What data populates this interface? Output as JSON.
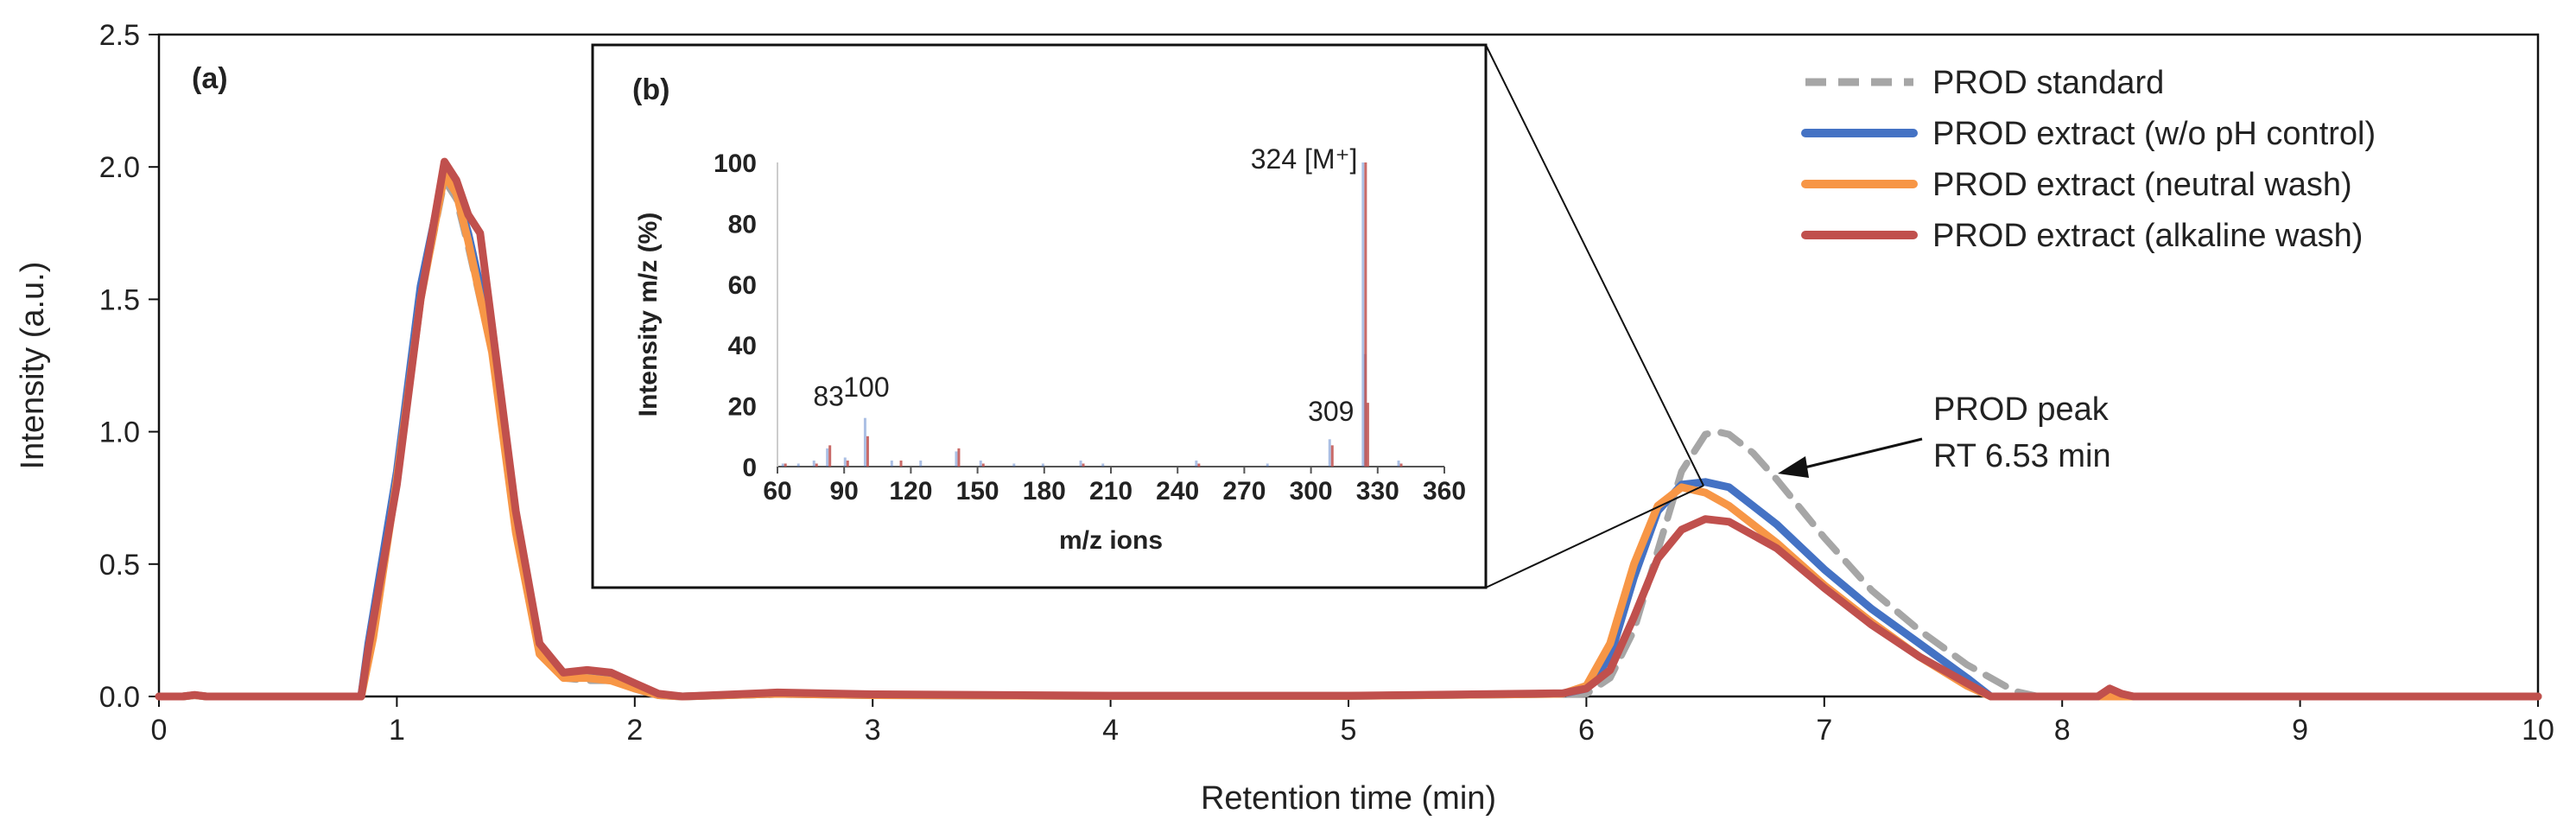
{
  "chart_data": [
    {
      "id": "main",
      "type": "line",
      "panel_label": "(a)",
      "xlabel": "Retention time (min)",
      "ylabel": "Intensity (a.u.)",
      "xlim": [
        0,
        10
      ],
      "ylim": [
        0,
        2.5
      ],
      "xticks": [
        0,
        1,
        2,
        3,
        4,
        5,
        6,
        7,
        8,
        9,
        10
      ],
      "yticks": [
        "0.0",
        "0.5",
        "1.0",
        "1.5",
        "2.0",
        "2.5"
      ],
      "legend_position": "top-right",
      "annotation": {
        "line1": "PROD peak",
        "line2": "RT 6.53 min",
        "x": 6.6,
        "y": 0.99
      },
      "series": [
        {
          "name": "PROD standard",
          "color": "#a6a6a6",
          "dashed": true,
          "points": [
            [
              0,
              0
            ],
            [
              0.1,
              0
            ],
            [
              0.15,
              0.005
            ],
            [
              0.2,
              0
            ],
            [
              0.85,
              0
            ],
            [
              0.9,
              0.25
            ],
            [
              1.0,
              0.85
            ],
            [
              1.1,
              1.5
            ],
            [
              1.2,
              1.95
            ],
            [
              1.25,
              1.88
            ],
            [
              1.3,
              1.7
            ],
            [
              1.4,
              1.3
            ],
            [
              1.5,
              0.65
            ],
            [
              1.6,
              0.18
            ],
            [
              1.7,
              0.07
            ],
            [
              1.8,
              0.06
            ],
            [
              1.9,
              0.06
            ],
            [
              2.0,
              0.03
            ],
            [
              2.1,
              0.005
            ],
            [
              2.2,
              0
            ],
            [
              2.6,
              0.008
            ],
            [
              3.0,
              0.005
            ],
            [
              4.0,
              0.002
            ],
            [
              5.0,
              0.002
            ],
            [
              6.0,
              0.01
            ],
            [
              6.1,
              0.07
            ],
            [
              6.2,
              0.25
            ],
            [
              6.3,
              0.55
            ],
            [
              6.4,
              0.85
            ],
            [
              6.5,
              0.99
            ],
            [
              6.55,
              1.0
            ],
            [
              6.6,
              0.99
            ],
            [
              6.7,
              0.92
            ],
            [
              6.8,
              0.82
            ],
            [
              7.0,
              0.6
            ],
            [
              7.2,
              0.4
            ],
            [
              7.4,
              0.25
            ],
            [
              7.6,
              0.12
            ],
            [
              7.8,
              0.02
            ],
            [
              7.9,
              0
            ],
            [
              8.2,
              0
            ],
            [
              10,
              0
            ]
          ]
        },
        {
          "name": "PROD extract (w/o pH control)",
          "color": "#4472c4",
          "dashed": false,
          "points": [
            [
              0,
              0
            ],
            [
              0.1,
              0
            ],
            [
              0.15,
              0.005
            ],
            [
              0.2,
              0
            ],
            [
              0.85,
              0
            ],
            [
              0.88,
              0.2
            ],
            [
              1.0,
              0.85
            ],
            [
              1.1,
              1.55
            ],
            [
              1.2,
              1.98
            ],
            [
              1.25,
              1.9
            ],
            [
              1.3,
              1.75
            ],
            [
              1.4,
              1.35
            ],
            [
              1.5,
              0.68
            ],
            [
              1.6,
              0.18
            ],
            [
              1.7,
              0.08
            ],
            [
              1.8,
              0.08
            ],
            [
              1.9,
              0.07
            ],
            [
              2.0,
              0.03
            ],
            [
              2.1,
              0.005
            ],
            [
              2.2,
              0
            ],
            [
              2.6,
              0.01
            ],
            [
              3.0,
              0.005
            ],
            [
              4.0,
              0.002
            ],
            [
              5.0,
              0.002
            ],
            [
              5.9,
              0.01
            ],
            [
              6.0,
              0.03
            ],
            [
              6.1,
              0.15
            ],
            [
              6.2,
              0.45
            ],
            [
              6.3,
              0.7
            ],
            [
              6.4,
              0.8
            ],
            [
              6.5,
              0.81
            ],
            [
              6.6,
              0.79
            ],
            [
              6.8,
              0.65
            ],
            [
              7.0,
              0.48
            ],
            [
              7.2,
              0.33
            ],
            [
              7.4,
              0.2
            ],
            [
              7.6,
              0.07
            ],
            [
              7.7,
              0
            ],
            [
              10,
              0
            ]
          ]
        },
        {
          "name": "PROD extract (neutral wash)",
          "color": "#f79646",
          "dashed": false,
          "points": [
            [
              0,
              0
            ],
            [
              0.1,
              0
            ],
            [
              0.15,
              0.005
            ],
            [
              0.2,
              0
            ],
            [
              0.85,
              0
            ],
            [
              0.9,
              0.22
            ],
            [
              1.0,
              0.82
            ],
            [
              1.1,
              1.5
            ],
            [
              1.2,
              1.97
            ],
            [
              1.25,
              1.9
            ],
            [
              1.3,
              1.72
            ],
            [
              1.4,
              1.3
            ],
            [
              1.5,
              0.62
            ],
            [
              1.6,
              0.16
            ],
            [
              1.7,
              0.07
            ],
            [
              1.8,
              0.07
            ],
            [
              1.9,
              0.06
            ],
            [
              2.0,
              0.03
            ],
            [
              2.1,
              0.005
            ],
            [
              2.2,
              0
            ],
            [
              2.6,
              0.01
            ],
            [
              3.0,
              0.005
            ],
            [
              4.0,
              0.002
            ],
            [
              5.0,
              0.002
            ],
            [
              5.9,
              0.01
            ],
            [
              6.0,
              0.04
            ],
            [
              6.1,
              0.2
            ],
            [
              6.2,
              0.5
            ],
            [
              6.3,
              0.72
            ],
            [
              6.4,
              0.79
            ],
            [
              6.5,
              0.77
            ],
            [
              6.6,
              0.72
            ],
            [
              6.8,
              0.58
            ],
            [
              7.0,
              0.42
            ],
            [
              7.2,
              0.28
            ],
            [
              7.4,
              0.15
            ],
            [
              7.6,
              0.04
            ],
            [
              7.7,
              0
            ],
            [
              10,
              0
            ]
          ]
        },
        {
          "name": "PROD extract (alkaline wash)",
          "color": "#c0504d",
          "dashed": false,
          "points": [
            [
              0,
              0
            ],
            [
              0.1,
              0
            ],
            [
              0.15,
              0.006
            ],
            [
              0.2,
              0
            ],
            [
              0.85,
              0
            ],
            [
              0.88,
              0.18
            ],
            [
              1.0,
              0.8
            ],
            [
              1.1,
              1.5
            ],
            [
              1.2,
              2.02
            ],
            [
              1.25,
              1.95
            ],
            [
              1.3,
              1.82
            ],
            [
              1.35,
              1.75
            ],
            [
              1.4,
              1.4
            ],
            [
              1.5,
              0.7
            ],
            [
              1.6,
              0.2
            ],
            [
              1.7,
              0.09
            ],
            [
              1.8,
              0.1
            ],
            [
              1.9,
              0.09
            ],
            [
              2.0,
              0.05
            ],
            [
              2.1,
              0.01
            ],
            [
              2.2,
              0
            ],
            [
              2.6,
              0.015
            ],
            [
              3.0,
              0.008
            ],
            [
              4.0,
              0.003
            ],
            [
              5.0,
              0.003
            ],
            [
              5.9,
              0.012
            ],
            [
              6.0,
              0.03
            ],
            [
              6.1,
              0.1
            ],
            [
              6.2,
              0.3
            ],
            [
              6.3,
              0.52
            ],
            [
              6.4,
              0.63
            ],
            [
              6.5,
              0.67
            ],
            [
              6.6,
              0.66
            ],
            [
              6.8,
              0.56
            ],
            [
              7.0,
              0.41
            ],
            [
              7.2,
              0.27
            ],
            [
              7.4,
              0.15
            ],
            [
              7.6,
              0.05
            ],
            [
              7.7,
              0
            ],
            [
              8.15,
              0
            ],
            [
              8.2,
              0.03
            ],
            [
              8.25,
              0.01
            ],
            [
              8.3,
              0
            ],
            [
              10,
              0
            ]
          ]
        }
      ]
    },
    {
      "id": "inset",
      "type": "bar",
      "panel_label": "(b)",
      "xlabel": "m/z ions",
      "ylabel": "Intensity m/z (%)",
      "xlim": [
        60,
        360
      ],
      "ylim": [
        0,
        100
      ],
      "xticks": [
        60,
        90,
        120,
        150,
        180,
        210,
        240,
        270,
        300,
        330,
        360
      ],
      "yticks": [
        0,
        20,
        40,
        60,
        80,
        100
      ],
      "peak_labels": [
        {
          "text": "83",
          "mz": 83,
          "y": 20
        },
        {
          "text": "100",
          "mz": 100,
          "y": 23
        },
        {
          "text": "309",
          "mz": 309,
          "y": 15
        },
        {
          "text": "324 [M⁺]",
          "mz": 324,
          "y": 98
        }
      ],
      "series": [
        {
          "name": "PROD standard",
          "color": "#4472c4",
          "peaks": [
            [
              63,
              1
            ],
            [
              70,
              1
            ],
            [
              77,
              2
            ],
            [
              83,
              6
            ],
            [
              91,
              3
            ],
            [
              100,
              16
            ],
            [
              112,
              2
            ],
            [
              125,
              2
            ],
            [
              141,
              5
            ],
            [
              152,
              2
            ],
            [
              167,
              1
            ],
            [
              180,
              1
            ],
            [
              197,
              2
            ],
            [
              207,
              1
            ],
            [
              249,
              2
            ],
            [
              281,
              1
            ],
            [
              309,
              9
            ],
            [
              324,
              100
            ],
            [
              325,
              37
            ],
            [
              340,
              2
            ]
          ]
        },
        {
          "name": "PROD extract (alkaline wash)",
          "color": "#c0504d",
          "peaks": [
            [
              63,
              1
            ],
            [
              77,
              1
            ],
            [
              83,
              7
            ],
            [
              91,
              2
            ],
            [
              100,
              10
            ],
            [
              115,
              2
            ],
            [
              141,
              6
            ],
            [
              152,
              1
            ],
            [
              197,
              1
            ],
            [
              249,
              1
            ],
            [
              309,
              7
            ],
            [
              324,
              100
            ],
            [
              325,
              21
            ],
            [
              340,
              1
            ]
          ]
        }
      ]
    }
  ]
}
